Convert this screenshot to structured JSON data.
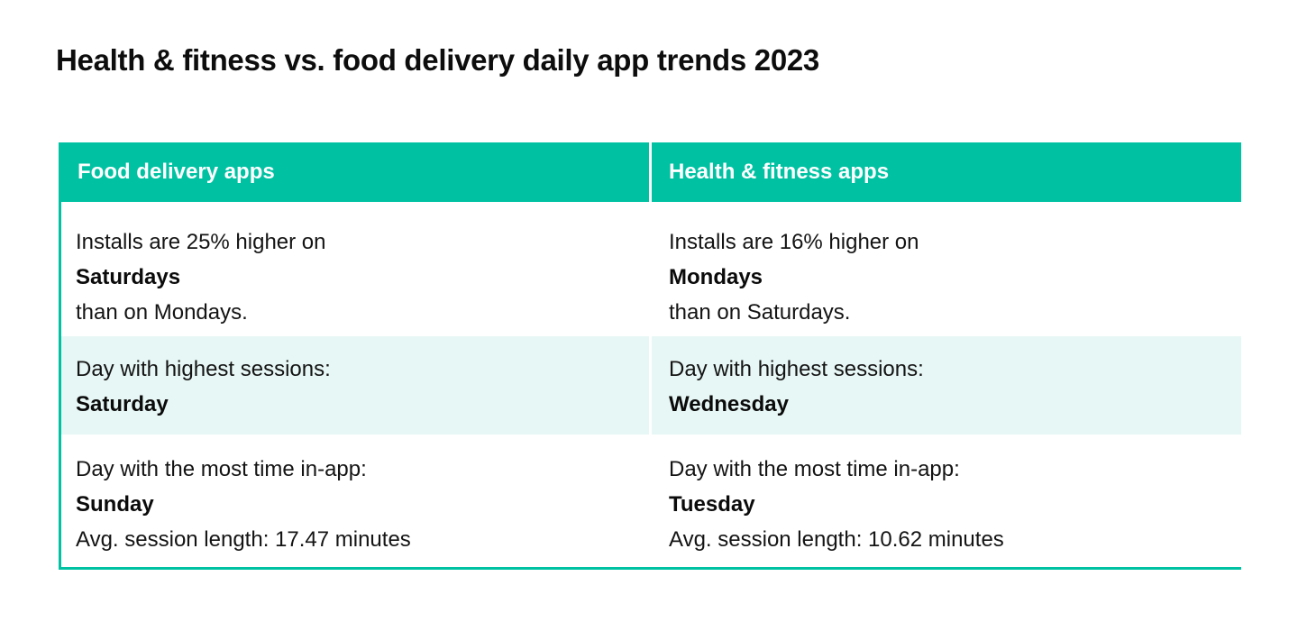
{
  "title": "Health & fitness vs. food delivery daily app trends 2023",
  "colors": {
    "accent": "#00c2a3",
    "shaded_row": "#e7f7f5"
  },
  "columns": [
    {
      "header": "Food delivery apps",
      "installs": {
        "pre": "Installs are 25% higher on",
        "day": "Saturdays",
        "post": "than on Mondays."
      },
      "sessions": {
        "label": "Day with highest sessions:",
        "day": "Saturday"
      },
      "time_in_app": {
        "label": "Day with the most time in-app:",
        "day": "Sunday",
        "avg": "Avg. session length: 17.47 minutes"
      }
    },
    {
      "header": "Health & fitness apps",
      "installs": {
        "pre": "Installs are 16% higher on",
        "day": "Mondays",
        "post": "than on Saturdays."
      },
      "sessions": {
        "label": "Day with highest sessions:",
        "day": "Wednesday"
      },
      "time_in_app": {
        "label": "Day with the most time in-app:",
        "day": "Tuesday",
        "avg": "Avg. session length: 10.62 minutes"
      }
    }
  ]
}
